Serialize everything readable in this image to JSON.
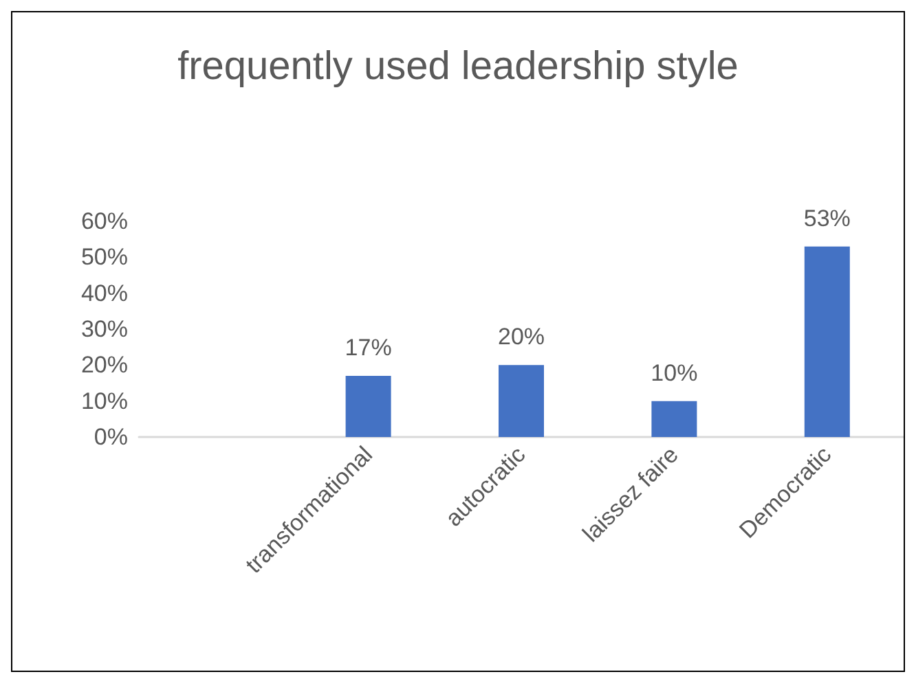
{
  "chart_data": {
    "type": "bar",
    "title": "frequently used leadership style",
    "categories": [
      null,
      "transformational",
      "autocratic",
      "laissez faire",
      "Democratic"
    ],
    "values": [
      null,
      17,
      20,
      10,
      53
    ],
    "value_labels": [
      null,
      "17%",
      "20%",
      "10%",
      "53%"
    ],
    "color": "#4472c4",
    "ylim": [
      0,
      60
    ],
    "yticks": [
      {
        "value": 0,
        "label": "0%"
      },
      {
        "value": 10,
        "label": "10%"
      },
      {
        "value": 20,
        "label": "20%"
      },
      {
        "value": 30,
        "label": "30%"
      },
      {
        "value": 40,
        "label": "40%"
      },
      {
        "value": 50,
        "label": "50%"
      },
      {
        "value": 60,
        "label": "60%"
      }
    ],
    "grid": false
  }
}
